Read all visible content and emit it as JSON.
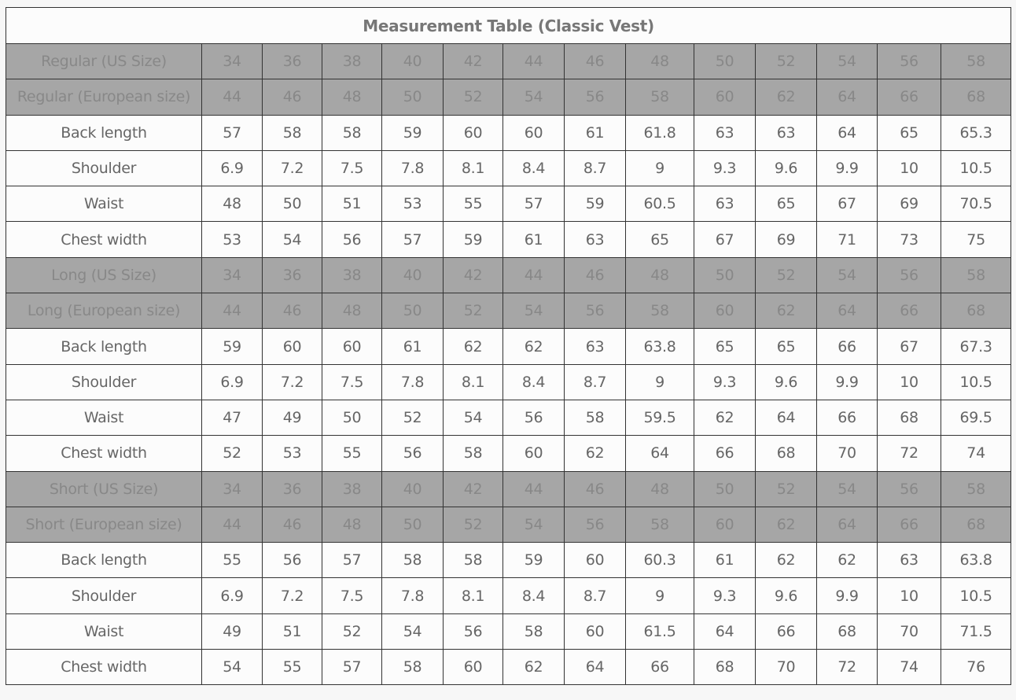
{
  "title": "Measurement Table (Classic Vest)",
  "colors": {
    "size_row_bg": "#a6a6a6",
    "data_row_bg": "#fcfcfc",
    "border": "#333333"
  },
  "rows": [
    {
      "type": "size",
      "label": "Regular (US Size)",
      "values": [
        "34",
        "36",
        "38",
        "40",
        "42",
        "44",
        "46",
        "48",
        "50",
        "52",
        "54",
        "56",
        "58"
      ]
    },
    {
      "type": "size",
      "label": "Regular (European size)",
      "values": [
        "44",
        "46",
        "48",
        "50",
        "52",
        "54",
        "56",
        "58",
        "60",
        "62",
        "64",
        "66",
        "68"
      ]
    },
    {
      "type": "data",
      "label": "Back length",
      "values": [
        "57",
        "58",
        "58",
        "59",
        "60",
        "60",
        "61",
        "61.8",
        "63",
        "63",
        "64",
        "65",
        "65.3"
      ]
    },
    {
      "type": "data",
      "label": "Shoulder",
      "values": [
        "6.9",
        "7.2",
        "7.5",
        "7.8",
        "8.1",
        "8.4",
        "8.7",
        "9",
        "9.3",
        "9.6",
        "9.9",
        "10",
        "10.5"
      ]
    },
    {
      "type": "data",
      "label": "Waist",
      "values": [
        "48",
        "50",
        "51",
        "53",
        "55",
        "57",
        "59",
        "60.5",
        "63",
        "65",
        "67",
        "69",
        "70.5"
      ]
    },
    {
      "type": "data",
      "label": "Chest width",
      "values": [
        "53",
        "54",
        "56",
        "57",
        "59",
        "61",
        "63",
        "65",
        "67",
        "69",
        "71",
        "73",
        "75"
      ]
    },
    {
      "type": "size",
      "label": "Long (US Size)",
      "values": [
        "34",
        "36",
        "38",
        "40",
        "42",
        "44",
        "46",
        "48",
        "50",
        "52",
        "54",
        "56",
        "58"
      ]
    },
    {
      "type": "size",
      "label": "Long (European size)",
      "values": [
        "44",
        "46",
        "48",
        "50",
        "52",
        "54",
        "56",
        "58",
        "60",
        "62",
        "64",
        "66",
        "68"
      ]
    },
    {
      "type": "data",
      "label": "Back length",
      "values": [
        "59",
        "60",
        "60",
        "61",
        "62",
        "62",
        "63",
        "63.8",
        "65",
        "65",
        "66",
        "67",
        "67.3"
      ]
    },
    {
      "type": "data",
      "label": "Shoulder",
      "values": [
        "6.9",
        "7.2",
        "7.5",
        "7.8",
        "8.1",
        "8.4",
        "8.7",
        "9",
        "9.3",
        "9.6",
        "9.9",
        "10",
        "10.5"
      ]
    },
    {
      "type": "data",
      "label": "Waist",
      "values": [
        "47",
        "49",
        "50",
        "52",
        "54",
        "56",
        "58",
        "59.5",
        "62",
        "64",
        "66",
        "68",
        "69.5"
      ]
    },
    {
      "type": "data",
      "label": "Chest width",
      "values": [
        "52",
        "53",
        "55",
        "56",
        "58",
        "60",
        "62",
        "64",
        "66",
        "68",
        "70",
        "72",
        "74"
      ]
    },
    {
      "type": "size",
      "label": "Short (US Size)",
      "values": [
        "34",
        "36",
        "38",
        "40",
        "42",
        "44",
        "46",
        "48",
        "50",
        "52",
        "54",
        "56",
        "58"
      ]
    },
    {
      "type": "size",
      "label": "Short (European size)",
      "values": [
        "44",
        "46",
        "48",
        "50",
        "52",
        "54",
        "56",
        "58",
        "60",
        "62",
        "64",
        "66",
        "68"
      ]
    },
    {
      "type": "data",
      "label": "Back length",
      "values": [
        "55",
        "56",
        "57",
        "58",
        "58",
        "59",
        "60",
        "60.3",
        "61",
        "62",
        "62",
        "63",
        "63.8"
      ]
    },
    {
      "type": "data",
      "label": "Shoulder",
      "values": [
        "6.9",
        "7.2",
        "7.5",
        "7.8",
        "8.1",
        "8.4",
        "8.7",
        "9",
        "9.3",
        "9.6",
        "9.9",
        "10",
        "10.5"
      ]
    },
    {
      "type": "data",
      "label": "Waist",
      "values": [
        "49",
        "51",
        "52",
        "54",
        "56",
        "58",
        "60",
        "61.5",
        "64",
        "66",
        "68",
        "70",
        "71.5"
      ]
    },
    {
      "type": "data",
      "label": "Chest width",
      "values": [
        "54",
        "55",
        "57",
        "58",
        "60",
        "62",
        "64",
        "66",
        "68",
        "70",
        "72",
        "74",
        "76"
      ]
    }
  ]
}
